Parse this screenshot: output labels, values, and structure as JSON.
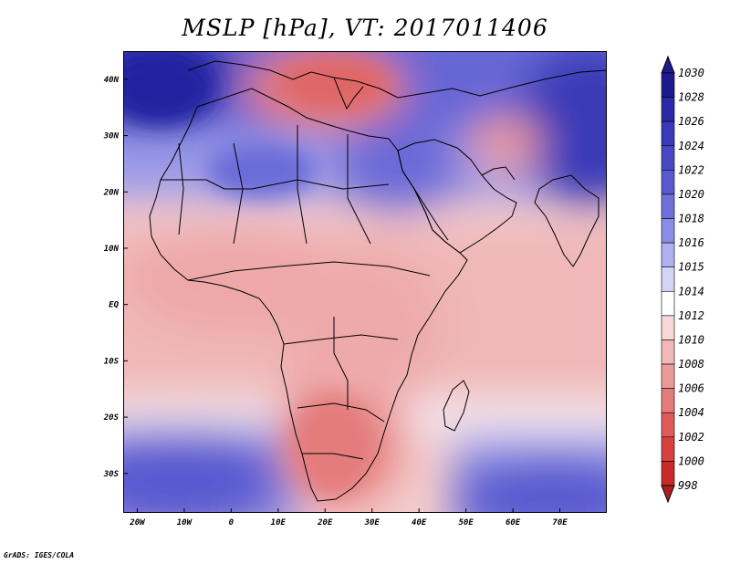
{
  "title": "MSLP [hPa], VT: 2017011406",
  "credit": "GrADS: IGES/COLA",
  "map": {
    "lon_range": [
      -23,
      80
    ],
    "lat_range": [
      -37,
      45
    ],
    "lon_ticks": [
      {
        "v": -20,
        "label": "20W"
      },
      {
        "v": -10,
        "label": "10W"
      },
      {
        "v": 0,
        "label": "0"
      },
      {
        "v": 10,
        "label": "10E"
      },
      {
        "v": 20,
        "label": "20E"
      },
      {
        "v": 30,
        "label": "30E"
      },
      {
        "v": 40,
        "label": "40E"
      },
      {
        "v": 50,
        "label": "50E"
      },
      {
        "v": 60,
        "label": "60E"
      },
      {
        "v": 70,
        "label": "70E"
      }
    ],
    "lat_ticks": [
      {
        "v": 40,
        "label": "40N"
      },
      {
        "v": 30,
        "label": "30N"
      },
      {
        "v": 20,
        "label": "20N"
      },
      {
        "v": 10,
        "label": "10N"
      },
      {
        "v": 0,
        "label": "EQ"
      },
      {
        "v": -10,
        "label": "10S"
      },
      {
        "v": -20,
        "label": "20S"
      },
      {
        "v": -30,
        "label": "30S"
      }
    ],
    "pressure_features": [
      {
        "name": "Atlantic high (NW)",
        "lon": -20,
        "lat": 44,
        "value": 1030
      },
      {
        "name": "Iberia/Algeria high",
        "lon": 0,
        "lat": 31,
        "value": 1022
      },
      {
        "name": "Libya/Egypt high",
        "lon": 22,
        "lat": 28,
        "value": 1021
      },
      {
        "name": "Arabia high",
        "lon": 45,
        "lat": 28,
        "value": 1023
      },
      {
        "name": "Central Asia high",
        "lon": 75,
        "lat": 38,
        "value": 1027
      },
      {
        "name": "South Atlantic high",
        "lon": -12,
        "lat": -33,
        "value": 1022
      },
      {
        "name": "South Indian Ocean high",
        "lon": 65,
        "lat": -34,
        "value": 1023
      },
      {
        "name": "Balkans/Greece low",
        "lon": 20,
        "lat": 43,
        "value": 1006
      },
      {
        "name": "Iran low",
        "lon": 57,
        "lat": 29,
        "value": 1008
      },
      {
        "name": "Southern Africa low",
        "lon": 23,
        "lat": -23,
        "value": 1006
      }
    ],
    "colors": {
      "land_border": "#000000"
    }
  },
  "colorbar": {
    "levels": [
      "1030",
      "1028",
      "1026",
      "1024",
      "1022",
      "1020",
      "1018",
      "1016",
      "1015",
      "1014",
      "1012",
      "1010",
      "1008",
      "1006",
      "1004",
      "1002",
      "1000",
      "998"
    ],
    "colors": [
      "#1e1a8e",
      "#2a2aa8",
      "#3a3ab8",
      "#4848c4",
      "#5a5ad0",
      "#7070dc",
      "#8c8ce6",
      "#b0b0ee",
      "#d4d4f6",
      "#ffffff",
      "#f8d8d8",
      "#f2b8b8",
      "#eb9a9a",
      "#e47c7c",
      "#e05a5a",
      "#d84040",
      "#c82a2a",
      "#a91e1e"
    ]
  }
}
